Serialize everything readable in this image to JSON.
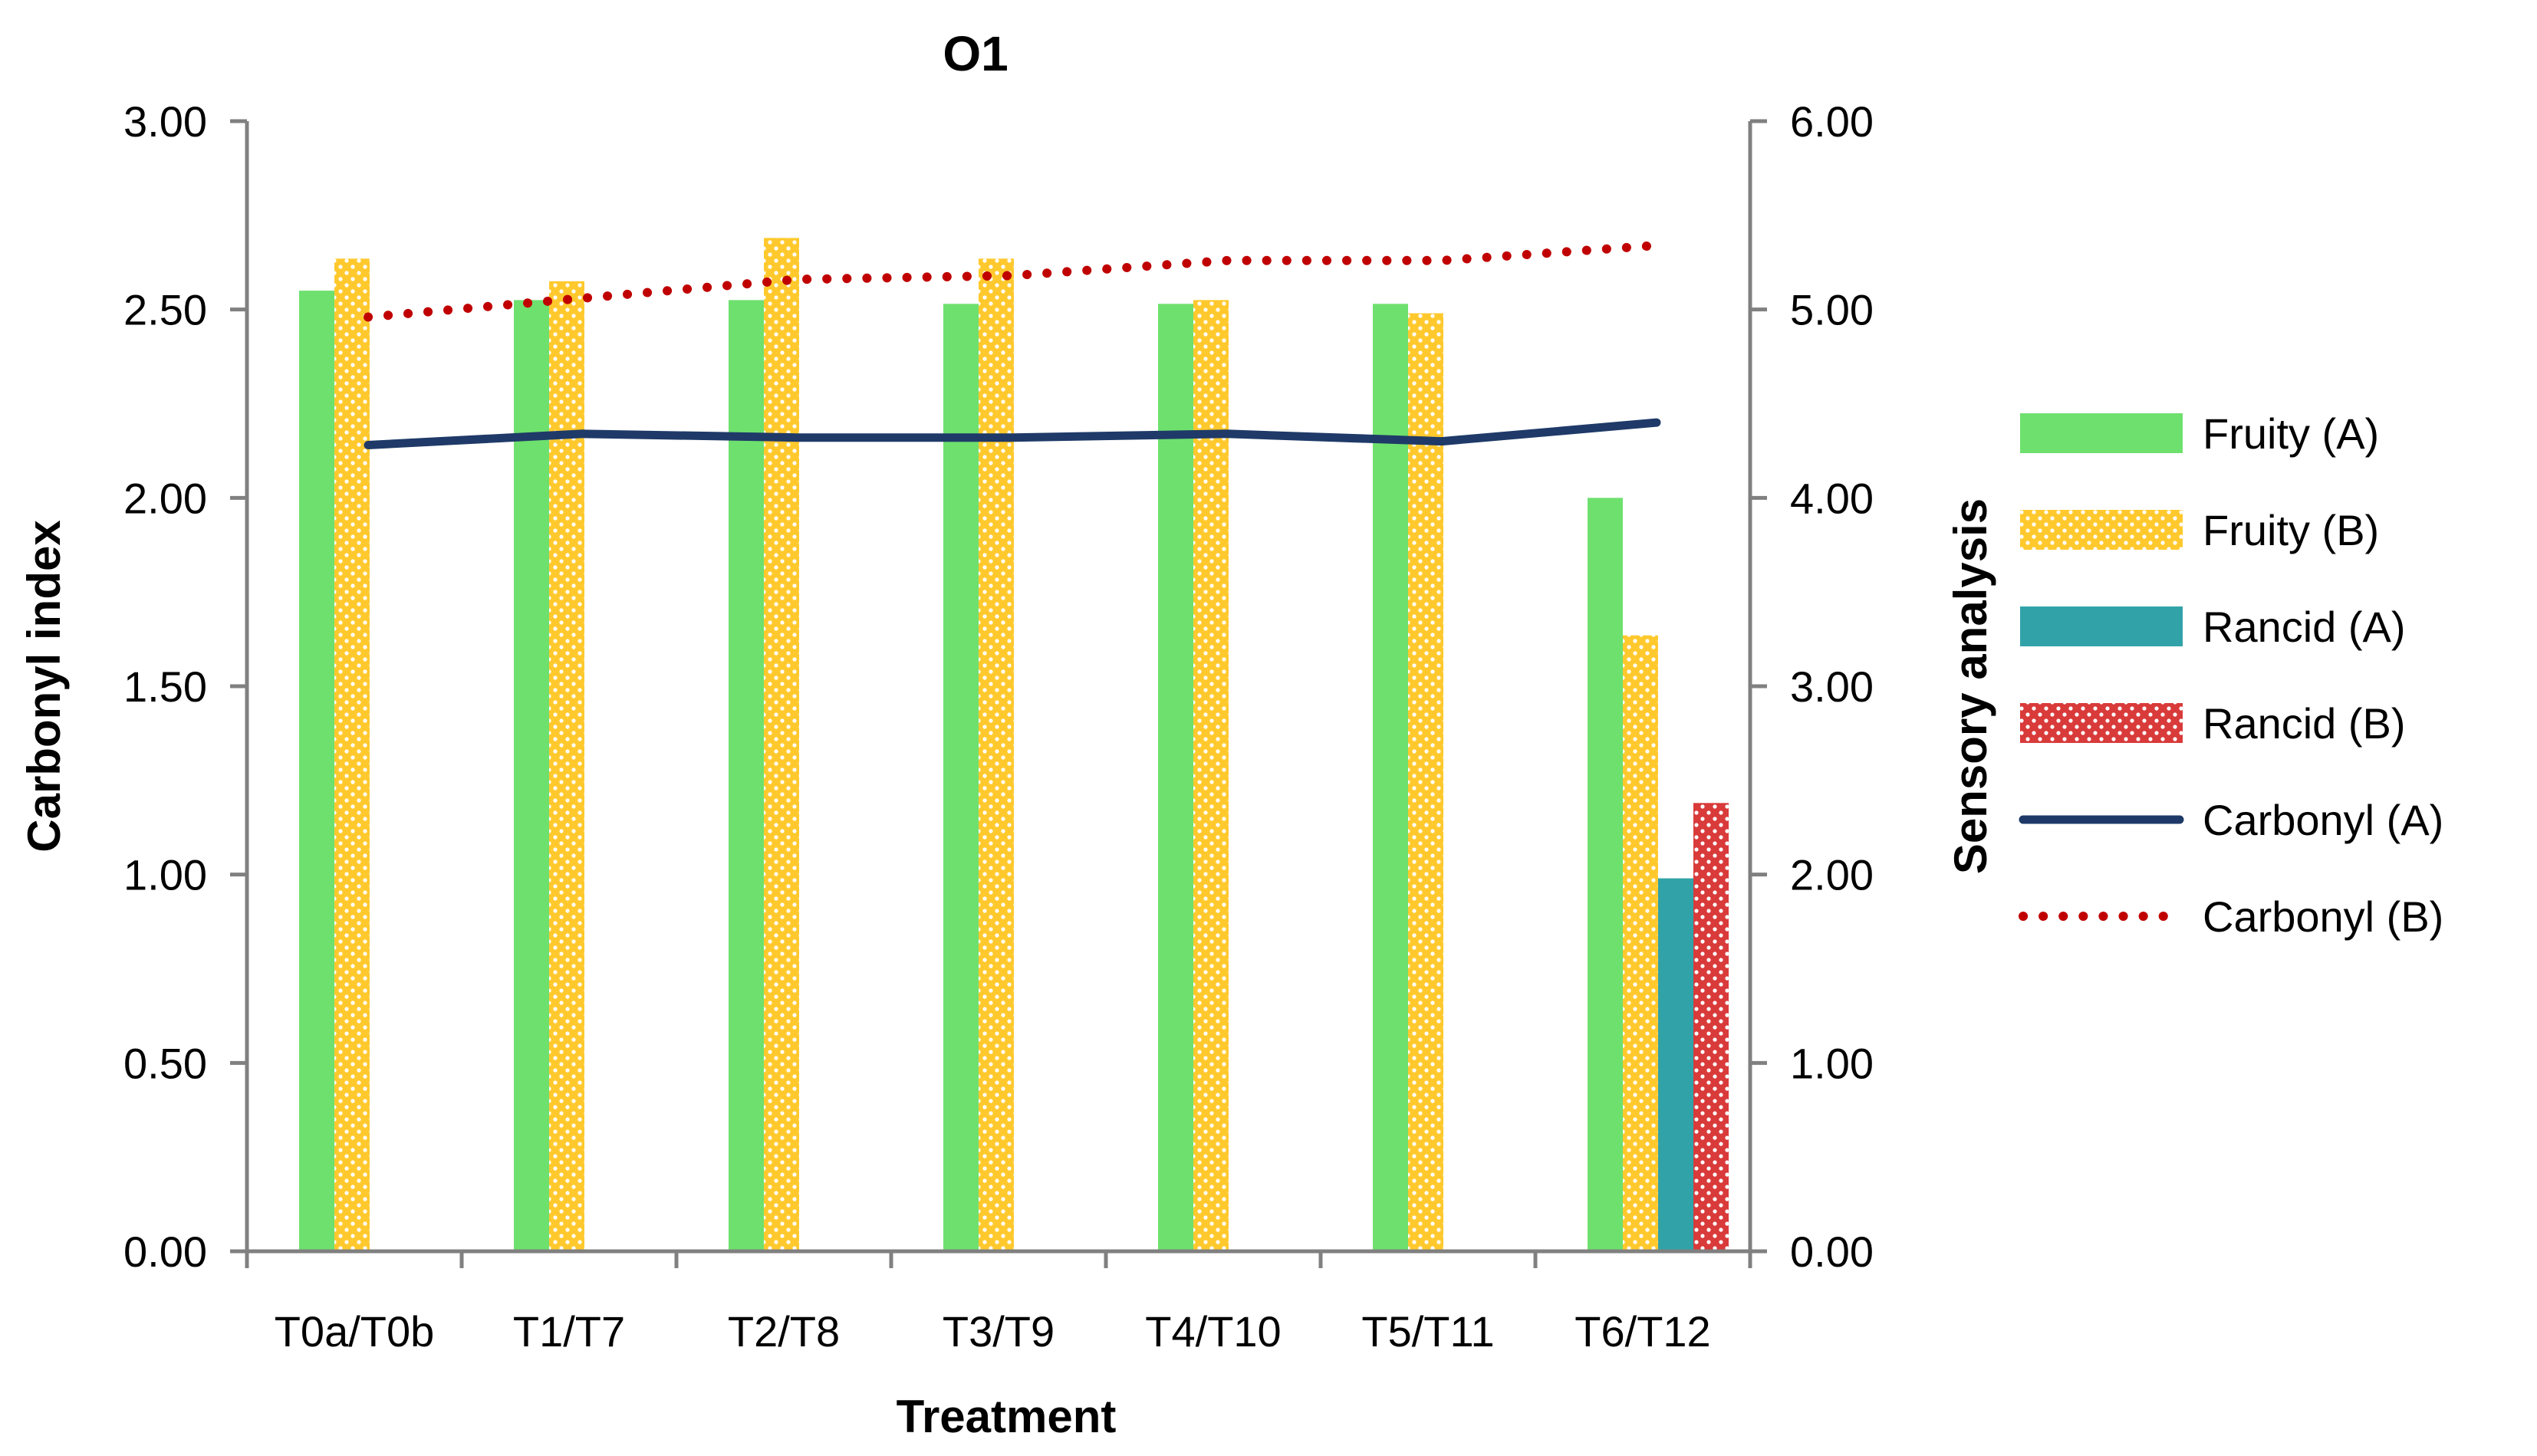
{
  "chart_data": {
    "type": "bar",
    "title": "O1",
    "xlabel": "Treatment",
    "ylabel_left": "Carbonyl index",
    "ylabel_right": "Sensory analysis",
    "categories": [
      "T0a/T0b",
      "T1/T7",
      "T2/T8",
      "T3/T9",
      "T4/T10",
      "T5/T11",
      "T6/T12"
    ],
    "ylim_left": [
      0,
      3
    ],
    "ylim_right": [
      0,
      6
    ],
    "left_ticks": [
      "0.00",
      "0.50",
      "1.00",
      "1.50",
      "2.00",
      "2.50",
      "3.00"
    ],
    "right_ticks": [
      "0.00",
      "1.00",
      "2.00",
      "3.00",
      "4.00",
      "5.00",
      "6.00"
    ],
    "series": [
      {
        "name": "Fruity (A)",
        "kind": "bar",
        "axis": "right",
        "color": "#6EE06E",
        "pattern": "solid",
        "values": [
          5.1,
          5.05,
          5.05,
          5.03,
          5.03,
          5.03,
          4.0
        ]
      },
      {
        "name": "Fruity (B)",
        "kind": "bar",
        "axis": "right",
        "color": "#FFC92E",
        "pattern": "dots",
        "values": [
          5.27,
          5.15,
          5.38,
          5.27,
          5.05,
          4.98,
          3.27
        ]
      },
      {
        "name": "Rancid (A)",
        "kind": "bar",
        "axis": "right",
        "color": "#31A3A8",
        "pattern": "solid",
        "values": [
          0,
          0,
          0,
          0,
          0,
          0,
          1.98
        ]
      },
      {
        "name": "Rancid (B)",
        "kind": "bar",
        "axis": "right",
        "color": "#D93A3A",
        "pattern": "dots",
        "values": [
          0,
          0,
          0,
          0,
          0,
          0,
          2.38
        ]
      },
      {
        "name": "Carbonyl (A)",
        "kind": "line",
        "axis": "left",
        "color": "#1F3A68",
        "style": "solid",
        "values": [
          2.14,
          2.17,
          2.16,
          2.16,
          2.17,
          2.15,
          2.2
        ]
      },
      {
        "name": "Carbonyl (B)",
        "kind": "line",
        "axis": "left",
        "color": "#C00000",
        "style": "dotted",
        "values": [
          2.48,
          2.53,
          2.58,
          2.59,
          2.63,
          2.63,
          2.67
        ]
      }
    ]
  }
}
